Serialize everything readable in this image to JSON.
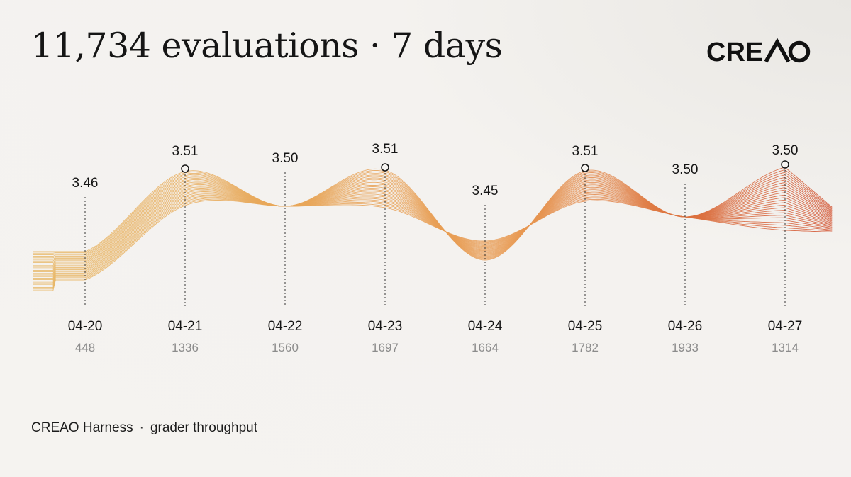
{
  "header": {
    "title": "11,734 evaluations · 7 days",
    "brand": "CREAO"
  },
  "footer": {
    "source": "CREAO Harness",
    "separator": "·",
    "metric": "grader throughput"
  },
  "colors": {
    "ribbon_start": "#e7b560",
    "ribbon_mid": "#e89a52",
    "ribbon_end": "#d2502e",
    "marker": "#141414",
    "count_text": "#8c8c8c"
  },
  "chart_data": {
    "type": "line",
    "title": "",
    "xlabel": "",
    "ylabel": "",
    "x": [
      "04-20",
      "04-21",
      "04-22",
      "04-23",
      "04-24",
      "04-25",
      "04-26",
      "04-27"
    ],
    "score_labels": [
      "3.46",
      "3.51",
      "3.50",
      "3.51",
      "3.45",
      "3.51",
      "3.50",
      "3.50"
    ],
    "series": [
      {
        "values": [
          3.46,
          3.51,
          3.5,
          3.51,
          3.45,
          3.51,
          3.5,
          3.5
        ]
      }
    ],
    "counts": [
      448,
      1336,
      1560,
      1697,
      1664,
      1782,
      1933,
      1314
    ],
    "markers_on": [
      "04-21",
      "04-23",
      "04-25",
      "04-27"
    ],
    "legend": "none",
    "grid": false
  }
}
